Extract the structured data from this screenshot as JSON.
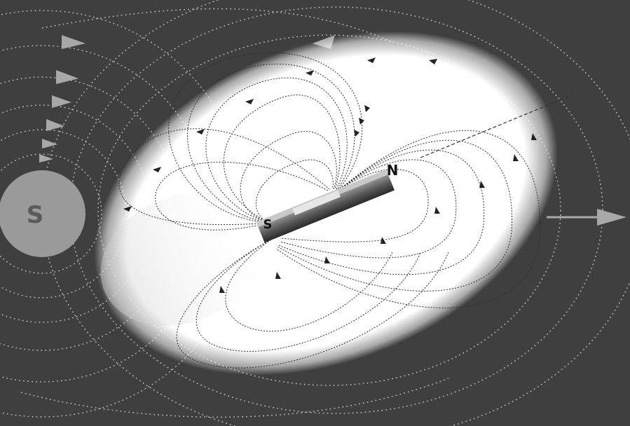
{
  "labels": {
    "sun_pole": "S",
    "magnet_south": "S",
    "magnet_north": "N"
  },
  "colors": {
    "background": "#3f3f3f",
    "sun_fill": "#9a9a9a",
    "field_line": "#b9b9b9",
    "inner_line": "#2a2a2a",
    "halo": "#ffffff",
    "arrow_gray": "#a8a8a8"
  }
}
